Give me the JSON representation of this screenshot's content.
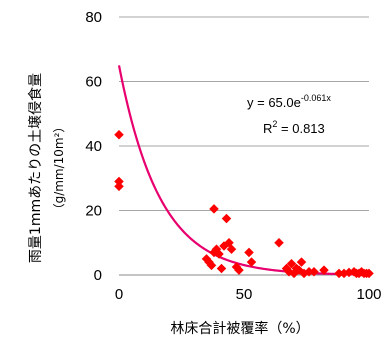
{
  "chart_data": {
    "type": "scatter",
    "title": "",
    "xlabel": "林床合計被覆率（%）",
    "ylabel": "雨量1mmあたりの土壌侵食量",
    "ylabel_unit": "（g/mm/10m²）",
    "xlim": [
      0,
      100
    ],
    "ylim": [
      0,
      80
    ],
    "x_ticks": [
      "0",
      "50",
      "100"
    ],
    "y_ticks": [
      "0",
      "20",
      "40",
      "60",
      "80"
    ],
    "grid": "horizontal",
    "marker_color": "#ff0000",
    "trendline_color": "#e8006e",
    "trendline": {
      "type": "exponential",
      "a": 65.0,
      "b": -0.061
    },
    "equation_text": {
      "prefix": "y = 65.0e",
      "exponent": "-0.061x"
    },
    "r2_text": {
      "prefix": "R",
      "sup": "2",
      "suffix": " = 0.813"
    },
    "points": [
      {
        "x": 0,
        "y": 43.5
      },
      {
        "x": 0,
        "y": 29
      },
      {
        "x": 0,
        "y": 27.5
      },
      {
        "x": 35,
        "y": 5
      },
      {
        "x": 36,
        "y": 4
      },
      {
        "x": 37,
        "y": 3
      },
      {
        "x": 38,
        "y": 20.5
      },
      {
        "x": 38,
        "y": 7
      },
      {
        "x": 39,
        "y": 8
      },
      {
        "x": 40,
        "y": 6.5
      },
      {
        "x": 41,
        "y": 2
      },
      {
        "x": 42,
        "y": 9
      },
      {
        "x": 43,
        "y": 17.5
      },
      {
        "x": 44,
        "y": 10
      },
      {
        "x": 45,
        "y": 8
      },
      {
        "x": 47,
        "y": 2.5
      },
      {
        "x": 48,
        "y": 1.5
      },
      {
        "x": 52,
        "y": 7
      },
      {
        "x": 53,
        "y": 4
      },
      {
        "x": 64,
        "y": 10
      },
      {
        "x": 67,
        "y": 2
      },
      {
        "x": 68,
        "y": 1
      },
      {
        "x": 69,
        "y": 3.5
      },
      {
        "x": 70,
        "y": 0.5
      },
      {
        "x": 71,
        "y": 2
      },
      {
        "x": 72,
        "y": 1.5
      },
      {
        "x": 73,
        "y": 4
      },
      {
        "x": 74,
        "y": 0.5
      },
      {
        "x": 76,
        "y": 1
      },
      {
        "x": 78,
        "y": 1
      },
      {
        "x": 82,
        "y": 1.5
      },
      {
        "x": 88,
        "y": 0.5
      },
      {
        "x": 90,
        "y": 0.5
      },
      {
        "x": 92,
        "y": 0.8
      },
      {
        "x": 94,
        "y": 1
      },
      {
        "x": 95,
        "y": 0.5
      },
      {
        "x": 96,
        "y": 0.5
      },
      {
        "x": 97,
        "y": 1
      },
      {
        "x": 98,
        "y": 0.5
      },
      {
        "x": 99,
        "y": 0.5
      },
      {
        "x": 100,
        "y": 0.5
      }
    ]
  }
}
